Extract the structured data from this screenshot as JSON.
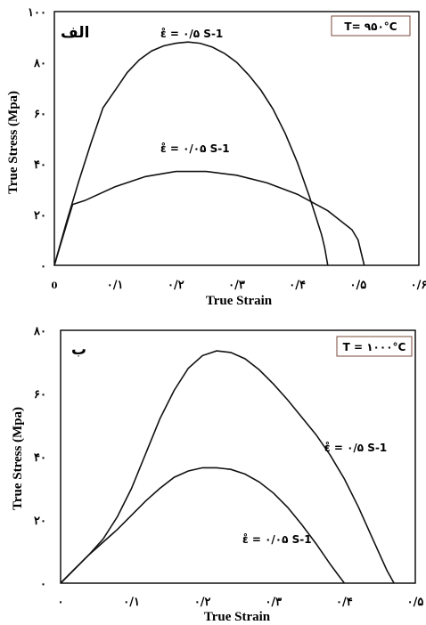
{
  "chart_data": [
    {
      "type": "line",
      "panel_label": "الف",
      "annotation": "T= ۹۵۰°C",
      "xlabel": "True Strain",
      "ylabel": "True Stress (Mpa)",
      "xlim": [
        0,
        0.6
      ],
      "ylim": [
        0,
        100
      ],
      "x_ticks": [
        0,
        0.1,
        0.2,
        0.3,
        0.4,
        0.5,
        0.6
      ],
      "x_tick_labels": [
        "0",
        "۰/۱",
        "۰/۲",
        "۰/۳",
        "۰/۴",
        "۰/۵",
        "۰/۶"
      ],
      "y_ticks": [
        0,
        20,
        40,
        60,
        80,
        100
      ],
      "y_tick_labels": [
        "۰",
        "۲۰",
        "۴۰",
        "۶۰",
        "۸۰",
        "۱۰۰"
      ],
      "series": [
        {
          "name": "ε̊ = ۰/۵ S-1",
          "x": [
            0,
            0.02,
            0.04,
            0.06,
            0.08,
            0.1,
            0.12,
            0.14,
            0.16,
            0.18,
            0.2,
            0.22,
            0.24,
            0.26,
            0.28,
            0.3,
            0.32,
            0.34,
            0.36,
            0.38,
            0.4,
            0.42,
            0.44,
            0.445,
            0.45
          ],
          "y": [
            0,
            17,
            33,
            48,
            62,
            69,
            76,
            81,
            84.5,
            86.5,
            87.5,
            88,
            87.5,
            86,
            83.5,
            80,
            75,
            69,
            61.5,
            52,
            40.5,
            27,
            12,
            7,
            0
          ]
        },
        {
          "name": "ε̊ = ۰/۰۵ S-1",
          "x": [
            0,
            0.01,
            0.02,
            0.03,
            0.05,
            0.1,
            0.15,
            0.2,
            0.25,
            0.3,
            0.35,
            0.4,
            0.45,
            0.49,
            0.5,
            0.51
          ],
          "y": [
            0,
            8,
            16,
            24,
            25.5,
            31,
            35,
            37,
            37,
            35.5,
            32.5,
            28,
            21.5,
            14,
            10,
            0
          ]
        }
      ]
    },
    {
      "type": "line",
      "panel_label": "ب",
      "annotation": "T = ۱۰۰۰°C",
      "xlabel": "True Strain",
      "ylabel": "True Stress (Mpa)",
      "xlim": [
        0,
        0.5
      ],
      "ylim": [
        0,
        80
      ],
      "x_ticks": [
        0,
        0.1,
        0.2,
        0.3,
        0.4,
        0.5
      ],
      "x_tick_labels": [
        "۰",
        "۰/۱",
        "۰/۲",
        "۰/۳",
        "۰/۴",
        "۰/۵"
      ],
      "y_ticks": [
        0,
        20,
        40,
        60,
        80
      ],
      "y_tick_labels": [
        "۰",
        "۲۰",
        "۴۰",
        "۶۰",
        "۸۰"
      ],
      "series": [
        {
          "name": "ε̊ = ۰/۵ S-1",
          "x": [
            0,
            0.02,
            0.04,
            0.06,
            0.08,
            0.1,
            0.12,
            0.14,
            0.16,
            0.18,
            0.2,
            0.22,
            0.24,
            0.26,
            0.28,
            0.3,
            0.32,
            0.34,
            0.36,
            0.38,
            0.4,
            0.42,
            0.44,
            0.46,
            0.47
          ],
          "y": [
            0,
            4.5,
            9,
            14,
            21,
            30,
            41,
            52,
            61,
            68,
            72,
            73.5,
            73,
            71,
            67.5,
            63,
            58,
            52.5,
            47,
            40.5,
            33,
            24,
            14,
            4,
            0
          ]
        },
        {
          "name": "ε̊ = ۰/۰۵ S-1",
          "x": [
            0,
            0.02,
            0.04,
            0.06,
            0.08,
            0.1,
            0.12,
            0.14,
            0.16,
            0.18,
            0.2,
            0.22,
            0.24,
            0.26,
            0.28,
            0.3,
            0.32,
            0.34,
            0.36,
            0.38,
            0.39,
            0.4
          ],
          "y": [
            0,
            4.5,
            9,
            13,
            17,
            21.5,
            26,
            30,
            33.5,
            35.5,
            36.5,
            36.5,
            36,
            34.5,
            32,
            28.5,
            24,
            18.5,
            12.5,
            6,
            3,
            0
          ]
        }
      ]
    }
  ]
}
